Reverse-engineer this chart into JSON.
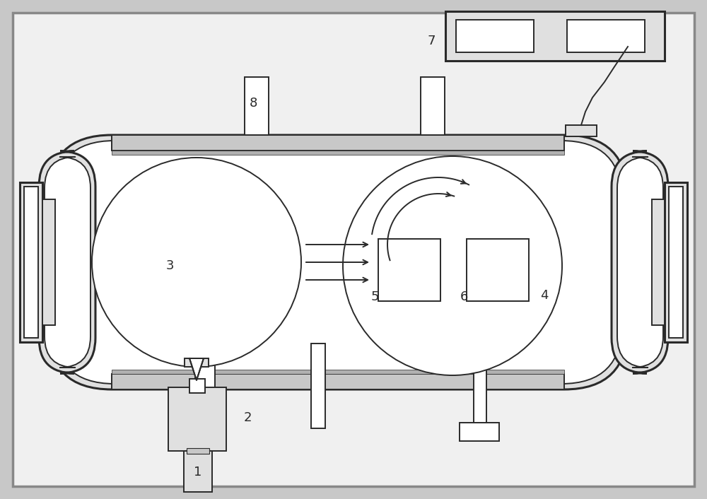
{
  "bg_color": "#f2f2f2",
  "line_color": "#2a2a2a",
  "fill_color": "#ffffff",
  "gray_fill": "#e0e0e0",
  "dark_gray": "#c8c8c8",
  "lw": 1.4,
  "lw_thick": 2.2,
  "fig_bg": "#c8c8c8",
  "inner_bg": "#f8f8f8",
  "label_fontsize": 13
}
